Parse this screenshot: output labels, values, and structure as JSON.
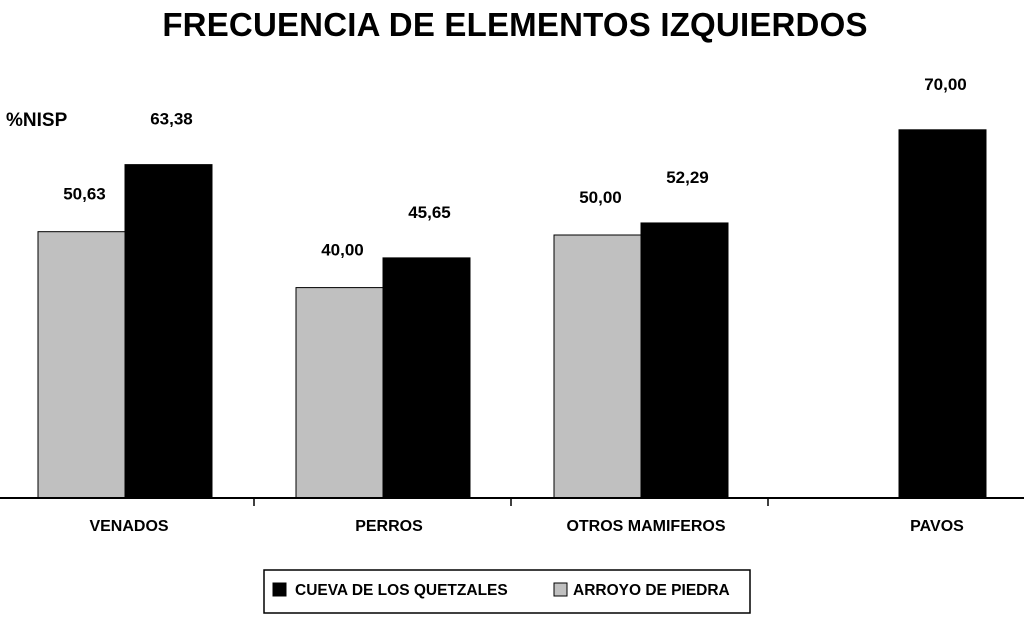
{
  "chart_data": {
    "type": "bar",
    "title": "FRECUENCIA DE ELEMENTOS IZQUIERDOS",
    "ylabel": "%NISP",
    "xlabel": "",
    "ylim": [
      0,
      80
    ],
    "categories": [
      "VENADOS",
      "PERROS",
      "OTROS MAMIFEROS",
      "PAVOS"
    ],
    "series": [
      {
        "name": "ARROYO DE PIEDRA",
        "color": "#c0c0c0",
        "values": [
          50.63,
          40.0,
          50.0,
          null
        ],
        "labels": [
          "50,63",
          "40,00",
          "50,00",
          ""
        ]
      },
      {
        "name": "CUEVA DE LOS QUETZALES",
        "color": "#000000",
        "values": [
          63.38,
          45.65,
          52.29,
          70.0
        ],
        "labels": [
          "63,38",
          "45,65",
          "52,29",
          "70,00"
        ]
      }
    ],
    "legend": {
      "position": "bottom-center",
      "order": [
        "CUEVA DE LOS QUETZALES",
        "ARROYO DE PIEDRA"
      ]
    },
    "grid": false
  }
}
